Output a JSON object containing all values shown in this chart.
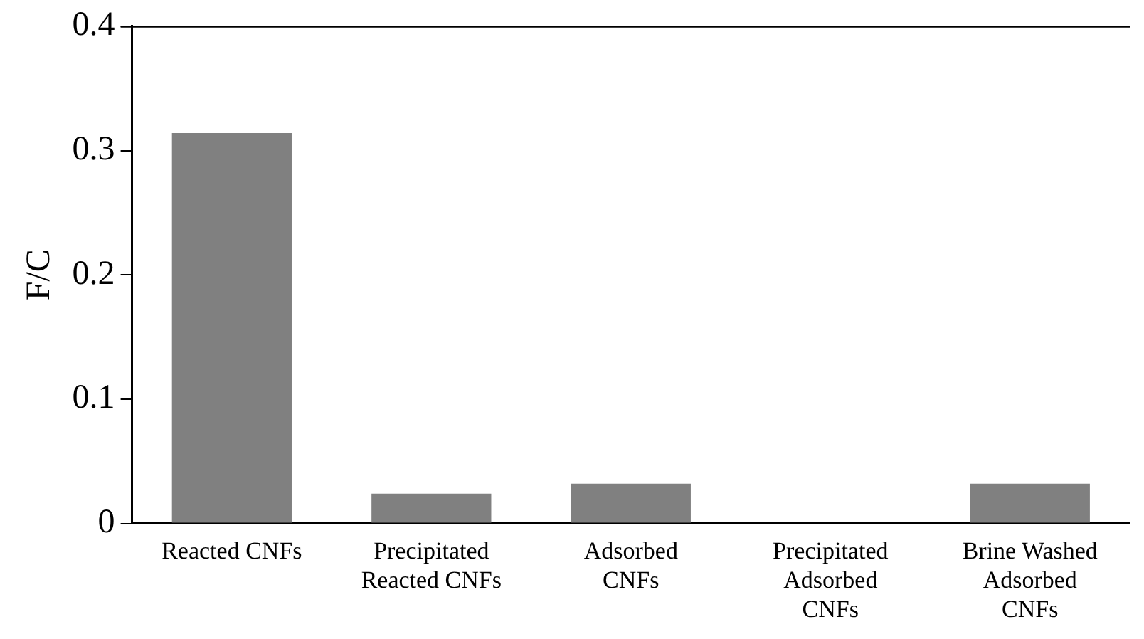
{
  "chart_data": {
    "type": "bar",
    "ylabel": "F/C",
    "categories": [
      "Reacted CNFs",
      "Precipitated Reacted CNFs",
      "Adsorbed CNFs",
      "Precipitated Adsorbed CNFs",
      "Brine Washed Adsorbed CNFs"
    ],
    "values": [
      0.314,
      0.024,
      0.032,
      0,
      0.032
    ],
    "color": "#808080",
    "ylim": [
      0,
      0.4
    ],
    "yticks": [
      0,
      0.1,
      0.2,
      0.3,
      0.4
    ],
    "grid": false,
    "legend": false
  }
}
